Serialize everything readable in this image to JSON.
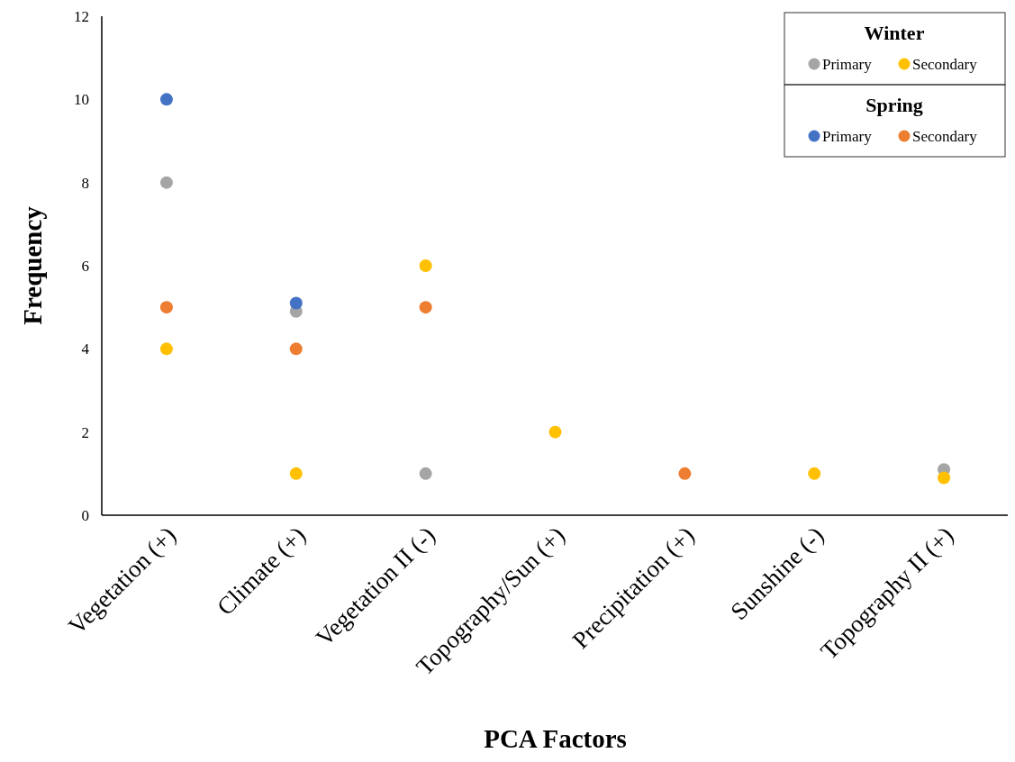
{
  "chart_data": {
    "type": "scatter",
    "xlabel": "PCA Factors",
    "ylabel": "Frequency",
    "categories": [
      "Vegetation (+)",
      "Climate (+)",
      "Vegetation II (-)",
      "Topography/Sun (+)",
      "Precipitation (+)",
      "Sunshine (-)",
      "Topography II (+)"
    ],
    "ylim": [
      0,
      12
    ],
    "yticks": [
      0,
      2,
      4,
      6,
      8,
      10,
      12
    ],
    "grid": false,
    "legend": "top right",
    "marker": "circle",
    "annotations": [
      "Winter",
      "Spring"
    ],
    "series": [
      {
        "name": "Primary",
        "color": "#a5a5a5",
        "values": [
          8,
          4.9,
          1,
          null,
          null,
          null,
          1.1
        ]
      },
      {
        "name": "Secondary",
        "color": "#ffc000",
        "values": [
          4,
          1,
          6,
          2,
          null,
          1,
          0.9
        ]
      },
      {
        "name": "Primary",
        "color": "#4472c4",
        "values": [
          10,
          5.1,
          null,
          null,
          null,
          null,
          null
        ]
      },
      {
        "name": "Secondary",
        "color": "#ed7d31",
        "values": [
          5,
          4,
          5,
          null,
          1,
          null,
          null
        ]
      }
    ]
  }
}
